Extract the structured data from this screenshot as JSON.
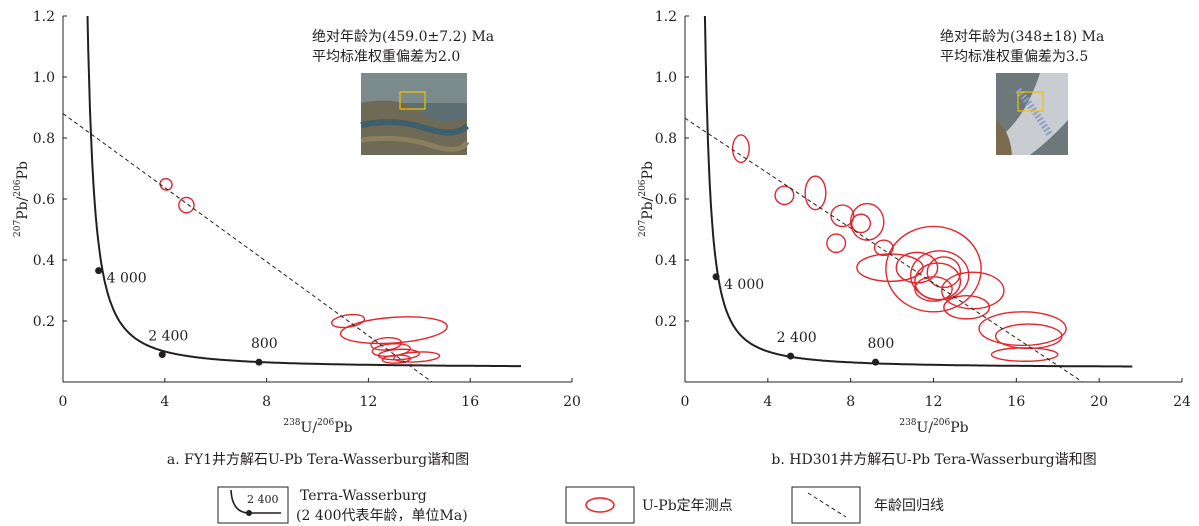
{
  "chart_data": [
    {
      "type": "scatter",
      "caption": "a. FY1井方解石U-Pb Tera-Wasserburg谐和图",
      "xlabel_base": "U/",
      "xlabel_sup1": "238",
      "xlabel_sup2": "206",
      "xlabel_tail": "Pb",
      "ylabel_sup1": "207",
      "ylabel_mid": "Pb/",
      "ylabel_sup2": "206",
      "ylabel_tail": "Pb",
      "xlim": [
        0,
        20
      ],
      "ylim": [
        0,
        1.2
      ],
      "xticks": [
        0,
        4,
        8,
        12,
        16,
        20
      ],
      "xtick_labels": [
        "0",
        "4",
        "8",
        "12",
        "16",
        "20"
      ],
      "yticks": [
        0.2,
        0.4,
        0.6,
        0.8,
        1.0,
        1.2
      ],
      "ytick_labels": [
        "0.2",
        "0.4",
        "0.6",
        "0.8",
        "1.0",
        "1.2"
      ],
      "annotation_line1": "绝对年龄为(459.0±7.2) Ma",
      "annotation_line2": "平均标准权重偏差为2.0",
      "regression": {
        "x0": 0,
        "y0": 0.88,
        "x1": 14.5,
        "y1": 0
      },
      "age_points": [
        {
          "x": 1.4,
          "y": 0.365,
          "label": "4 000"
        },
        {
          "x": 3.9,
          "y": 0.09,
          "label": "2 400"
        },
        {
          "x": 7.7,
          "y": 0.065,
          "label": "800"
        }
      ],
      "ellipses": [
        {
          "x": 4.05,
          "y": 0.648,
          "rx": 0.22,
          "ry": 0.02,
          "rot": -60
        },
        {
          "x": 4.85,
          "y": 0.58,
          "rx": 0.3,
          "ry": 0.025,
          "rot": -60
        },
        {
          "x": 11.2,
          "y": 0.2,
          "rx": 0.65,
          "ry": 0.02,
          "rot": -8
        },
        {
          "x": 13.0,
          "y": 0.17,
          "rx": 2.1,
          "ry": 0.042,
          "rot": -4
        },
        {
          "x": 12.7,
          "y": 0.125,
          "rx": 0.6,
          "ry": 0.02,
          "rot": -5
        },
        {
          "x": 12.9,
          "y": 0.105,
          "rx": 0.75,
          "ry": 0.02,
          "rot": -5
        },
        {
          "x": 13.2,
          "y": 0.09,
          "rx": 0.8,
          "ry": 0.017,
          "rot": -3
        },
        {
          "x": 13.9,
          "y": 0.082,
          "rx": 0.9,
          "ry": 0.016,
          "rot": -3
        },
        {
          "x": 13.1,
          "y": 0.075,
          "rx": 0.55,
          "ry": 0.013,
          "rot": -3
        }
      ]
    },
    {
      "type": "scatter",
      "caption": "b. HD301井方解石U-Pb Tera-Wasserburg谐和图",
      "xlabel_base": "U/",
      "xlabel_sup1": "238",
      "xlabel_sup2": "206",
      "xlabel_tail": "Pb",
      "ylabel_sup1": "207",
      "ylabel_mid": "Pb/",
      "ylabel_sup2": "206",
      "ylabel_tail": "Pb",
      "xlim": [
        0,
        24
      ],
      "ylim": [
        0,
        1.2
      ],
      "xticks": [
        0,
        4,
        8,
        12,
        16,
        20,
        24
      ],
      "xtick_labels": [
        "0",
        "4",
        "8",
        "12",
        "16",
        "20",
        "24"
      ],
      "yticks": [
        0.2,
        0.4,
        0.6,
        0.8,
        1.0,
        1.2
      ],
      "ytick_labels": [
        "0.2",
        "0.4",
        "0.6",
        "0.8",
        "1.0",
        "1.2"
      ],
      "annotation_line1": "绝对年龄为(348±18) Ma",
      "annotation_line2": "平均标准权重偏差为3.5",
      "regression": {
        "x0": 0,
        "y0": 0.865,
        "x1": 19.2,
        "y1": 0
      },
      "age_points": [
        {
          "x": 1.5,
          "y": 0.345,
          "label": "4 000"
        },
        {
          "x": 5.1,
          "y": 0.085,
          "label": "2 400"
        },
        {
          "x": 9.2,
          "y": 0.065,
          "label": "800"
        }
      ],
      "ellipses": [
        {
          "x": 2.7,
          "y": 0.765,
          "rx": 0.4,
          "ry": 0.045,
          "rot": 0
        },
        {
          "x": 4.8,
          "y": 0.612,
          "rx": 0.45,
          "ry": 0.03,
          "rot": 0
        },
        {
          "x": 6.3,
          "y": 0.62,
          "rx": 0.5,
          "ry": 0.055,
          "rot": 0
        },
        {
          "x": 7.3,
          "y": 0.455,
          "rx": 0.45,
          "ry": 0.03,
          "rot": 0
        },
        {
          "x": 7.6,
          "y": 0.545,
          "rx": 0.55,
          "ry": 0.035,
          "rot": 0
        },
        {
          "x": 8.5,
          "y": 0.52,
          "rx": 0.45,
          "ry": 0.03,
          "rot": 0
        },
        {
          "x": 8.8,
          "y": 0.525,
          "rx": 0.8,
          "ry": 0.06,
          "rot": 0
        },
        {
          "x": 9.6,
          "y": 0.44,
          "rx": 0.45,
          "ry": 0.025,
          "rot": 0
        },
        {
          "x": 9.9,
          "y": 0.375,
          "rx": 1.6,
          "ry": 0.045,
          "rot": 0
        },
        {
          "x": 11.2,
          "y": 0.375,
          "rx": 1.0,
          "ry": 0.05,
          "rot": 0
        },
        {
          "x": 12.0,
          "y": 0.37,
          "rx": 2.3,
          "ry": 0.14,
          "rot": 0
        },
        {
          "x": 12.3,
          "y": 0.35,
          "rx": 1.4,
          "ry": 0.08,
          "rot": 0
        },
        {
          "x": 12.2,
          "y": 0.33,
          "rx": 1.1,
          "ry": 0.06,
          "rot": 0
        },
        {
          "x": 12.5,
          "y": 0.36,
          "rx": 0.8,
          "ry": 0.05,
          "rot": 0
        },
        {
          "x": 12.0,
          "y": 0.305,
          "rx": 0.9,
          "ry": 0.04,
          "rot": 0
        },
        {
          "x": 13.9,
          "y": 0.3,
          "rx": 1.5,
          "ry": 0.06,
          "rot": 0
        },
        {
          "x": 13.6,
          "y": 0.245,
          "rx": 1.1,
          "ry": 0.038,
          "rot": 0
        },
        {
          "x": 16.3,
          "y": 0.175,
          "rx": 2.1,
          "ry": 0.055,
          "rot": 0
        },
        {
          "x": 16.6,
          "y": 0.15,
          "rx": 1.6,
          "ry": 0.04,
          "rot": 0
        },
        {
          "x": 16.4,
          "y": 0.09,
          "rx": 1.6,
          "ry": 0.022,
          "rot": 0
        }
      ]
    }
  ],
  "legend": {
    "concordia_label": "Terra-Wasserburg",
    "concordia_sub": "(2 400代表年龄，单位Ma)",
    "concordia_sample": "2 400",
    "ellipse_label": "U-Pb定年测点",
    "regression_label": "年龄回归线"
  }
}
